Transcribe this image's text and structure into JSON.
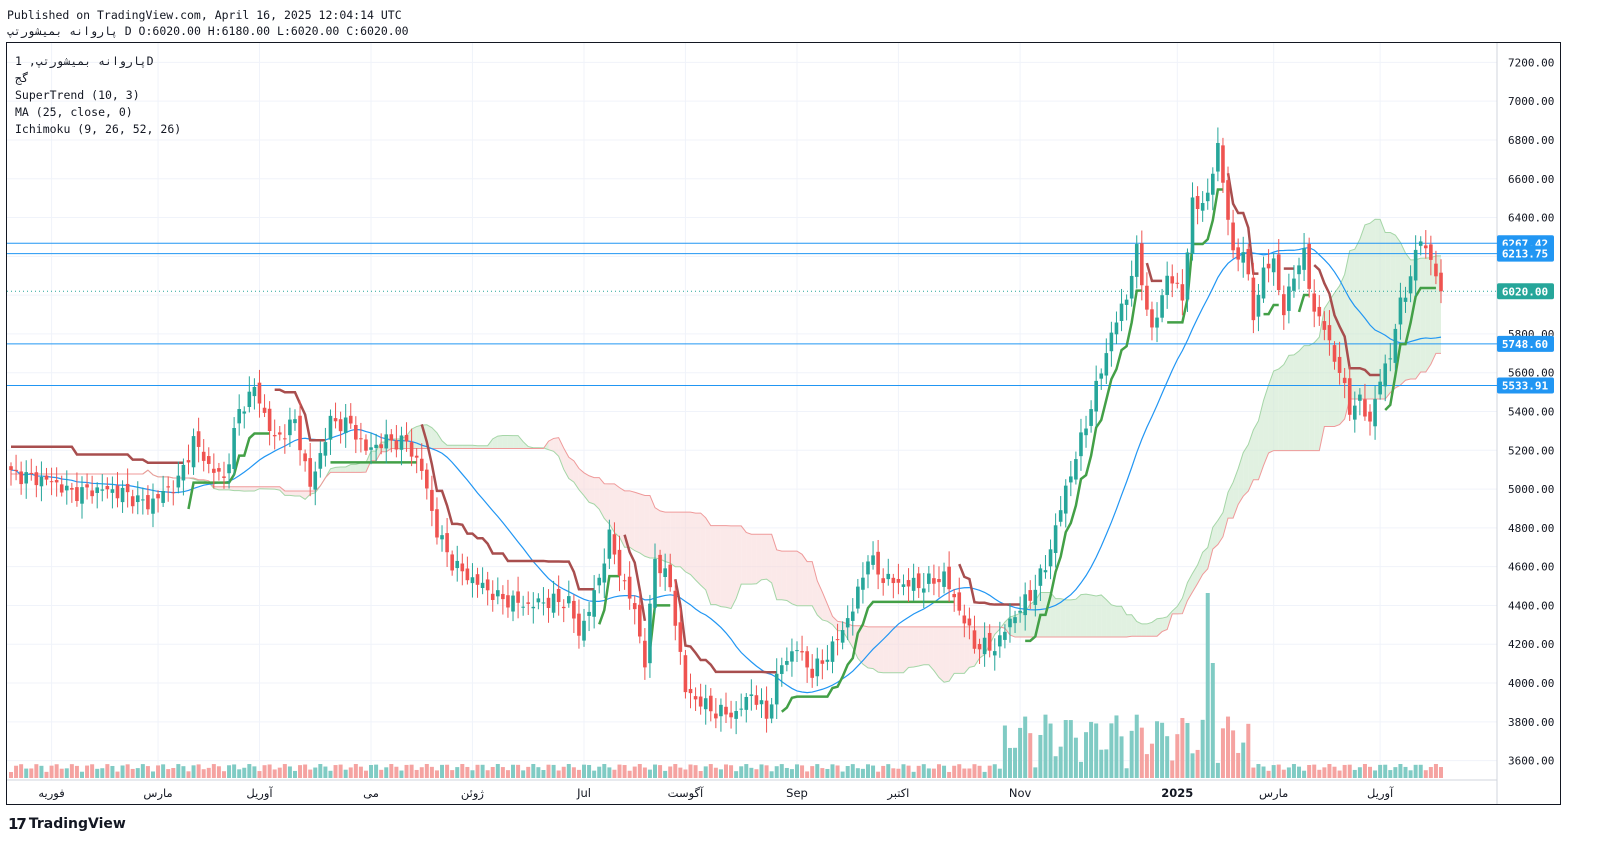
{
  "header": {
    "published": "Published on TradingView.com, April 16, 2025 12:04:14 UTC",
    "ohlc": "پاروانه بمیشورتپ D O:6020.00 H:6180.00 L:6020.00 C:6020.00"
  },
  "legend": {
    "symbol": "پاروانه بمیشورتپ, 1D",
    "sub": "گج",
    "supertrend": "SuperTrend (10, 3)",
    "ma": "MA (25, close, 0)",
    "ichimoku": "Ichimoku (9, 26, 52, 26)"
  },
  "brand": {
    "logo_text": "TradingView"
  },
  "colors": {
    "up": "#26a69a",
    "down": "#ef5350",
    "supertrend_up": "#43a047",
    "supertrend_down": "#a84e4e",
    "ma": "#2196f3",
    "cloud_bull": "#c8e6c9",
    "cloud_bear": "#f8d7d7",
    "hline": "#2196f3",
    "price_tag": "#26a69a"
  },
  "chart_data": {
    "type": "candlestick",
    "ylim": [
      3500,
      7300
    ],
    "yticks": [
      3600,
      3800,
      4000,
      4200,
      4400,
      4600,
      4800,
      5000,
      5200,
      5400,
      5600,
      5800,
      6000,
      6200,
      6400,
      6600,
      6800,
      7000,
      7200
    ],
    "ytick_labels": [
      "3600.00",
      "3800.00",
      "4000.00",
      "4200.00",
      "4400.00",
      "4600.00",
      "4800.00",
      "5000.00",
      "5200.00",
      "5400.00",
      "5600.00",
      "5800.00",
      "6000.00",
      "6200.00",
      "6400.00",
      "6600.00",
      "6800.00",
      "7000.00",
      "7200.00"
    ],
    "xticks": [
      {
        "label": "فوریه",
        "bar": 8
      },
      {
        "label": "مارس",
        "bar": 29
      },
      {
        "label": "آوریل",
        "bar": 49
      },
      {
        "label": "می",
        "bar": 71
      },
      {
        "label": "ژوئن",
        "bar": 91
      },
      {
        "label": "Jul",
        "bar": 113
      },
      {
        "label": "آگوست",
        "bar": 133
      },
      {
        "label": "Sep",
        "bar": 155
      },
      {
        "label": "اکتبر",
        "bar": 175
      },
      {
        "label": "Nov",
        "bar": 199
      },
      {
        "label": "2025",
        "bar": 230,
        "bold": true
      },
      {
        "label": "مارس",
        "bar": 249
      },
      {
        "label": "آوریل",
        "bar": 270
      }
    ],
    "price_lines": [
      {
        "label": "6267.42",
        "value": 6267.42,
        "color": "#2196f3"
      },
      {
        "label": "6213.75",
        "value": 6213.75,
        "color": "#2196f3"
      },
      {
        "label": "5748.60",
        "value": 5748.6,
        "color": "#2196f3"
      },
      {
        "label": "5533.91",
        "value": 5533.91,
        "color": "#2196f3"
      }
    ],
    "last_price": {
      "label": "6020.00",
      "value": 6020.0
    },
    "close_waypoints": [
      [
        0,
        5080
      ],
      [
        8,
        5040
      ],
      [
        12,
        4980
      ],
      [
        18,
        5000
      ],
      [
        22,
        4980
      ],
      [
        27,
        4920
      ],
      [
        29,
        4960
      ],
      [
        33,
        5040
      ],
      [
        36,
        5250
      ],
      [
        39,
        5120
      ],
      [
        42,
        5050
      ],
      [
        45,
        5400
      ],
      [
        48,
        5520
      ],
      [
        52,
        5250
      ],
      [
        56,
        5350
      ],
      [
        59,
        5010
      ],
      [
        63,
        5350
      ],
      [
        67,
        5330
      ],
      [
        70,
        5200
      ],
      [
        74,
        5250
      ],
      [
        78,
        5240
      ],
      [
        81,
        5100
      ],
      [
        84,
        4780
      ],
      [
        87,
        4620
      ],
      [
        90,
        4550
      ],
      [
        93,
        4500
      ],
      [
        96,
        4440
      ],
      [
        99,
        4420
      ],
      [
        102,
        4400
      ],
      [
        105,
        4420
      ],
      [
        110,
        4420
      ],
      [
        112,
        4250
      ],
      [
        115,
        4450
      ],
      [
        118,
        4750
      ],
      [
        121,
        4500
      ],
      [
        123,
        4380
      ],
      [
        125,
        4100
      ],
      [
        127,
        4650
      ],
      [
        130,
        4500
      ],
      [
        133,
        3960
      ],
      [
        136,
        3900
      ],
      [
        139,
        3850
      ],
      [
        143,
        3840
      ],
      [
        146,
        3950
      ],
      [
        149,
        3830
      ],
      [
        152,
        4100
      ],
      [
        155,
        4180
      ],
      [
        158,
        4050
      ],
      [
        162,
        4180
      ],
      [
        166,
        4380
      ],
      [
        169,
        4650
      ],
      [
        172,
        4540
      ],
      [
        176,
        4510
      ],
      [
        180,
        4510
      ],
      [
        184,
        4550
      ],
      [
        187,
        4380
      ],
      [
        190,
        4200
      ],
      [
        194,
        4180
      ],
      [
        197,
        4320
      ],
      [
        201,
        4450
      ],
      [
        204,
        4600
      ],
      [
        208,
        5000
      ],
      [
        211,
        5250
      ],
      [
        214,
        5520
      ],
      [
        217,
        5800
      ],
      [
        220,
        6000
      ],
      [
        222,
        6220
      ],
      [
        225,
        5800
      ],
      [
        228,
        6100
      ],
      [
        231,
        6000
      ],
      [
        233,
        6460
      ],
      [
        236,
        6500
      ],
      [
        238,
        6780
      ],
      [
        241,
        6200
      ],
      [
        243,
        6230
      ],
      [
        245,
        5900
      ],
      [
        247,
        6120
      ],
      [
        249,
        6180
      ],
      [
        251,
        5900
      ],
      [
        253,
        6120
      ],
      [
        255,
        6200
      ],
      [
        257,
        5920
      ],
      [
        259,
        5830
      ],
      [
        262,
        5600
      ],
      [
        264,
        5420
      ],
      [
        266,
        5450
      ],
      [
        268,
        5350
      ],
      [
        270,
        5560
      ],
      [
        272,
        5700
      ],
      [
        274,
        5950
      ],
      [
        276,
        6100
      ],
      [
        278,
        6300
      ],
      [
        280,
        6180
      ],
      [
        282,
        6020
      ]
    ],
    "volume": {
      "note": "volume histogram along bottom; largest bar near Jan 2025"
    }
  }
}
